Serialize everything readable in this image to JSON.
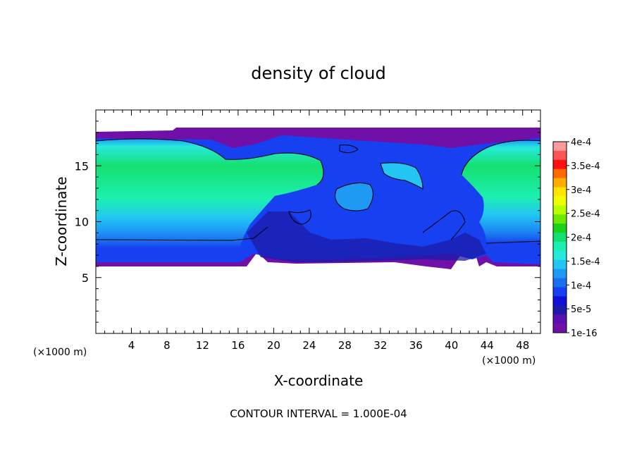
{
  "chart_data": {
    "type": "heatmap",
    "title": "density of cloud",
    "xlabel": "X-coordinate",
    "ylabel": "Z-coordinate",
    "x_unit_left": "(×1000 m)",
    "x_unit_right": "(×1000 m)",
    "footer": "CONTOUR INTERVAL = 1.000E-04",
    "xlim": [
      0,
      50
    ],
    "ylim": [
      0,
      20
    ],
    "x_ticks": [
      4,
      8,
      12,
      16,
      20,
      24,
      28,
      32,
      36,
      40,
      44,
      48
    ],
    "y_ticks": [
      5,
      10,
      15
    ],
    "colorbar": {
      "labels": [
        "4e-4",
        "3.5e-4",
        "3e-4",
        "2.5e-4",
        "2e-4",
        "1.5e-4",
        "1e-4",
        "5e-5",
        "1e-16"
      ],
      "colors": [
        "#ff9b9b",
        "#ff5555",
        "#ff1010",
        "#ff6a00",
        "#ffad00",
        "#ffe500",
        "#f0ff00",
        "#b8ff00",
        "#6ee800",
        "#18d21c",
        "#14e070",
        "#1cf0b0",
        "#26e9dc",
        "#23c6f2",
        "#1e9af5",
        "#1a70ee",
        "#1640f0",
        "#1010d8",
        "#1c1aa8",
        "#5a10b0",
        "#7010a8"
      ]
    },
    "contour_levels": [
      0.0001
    ]
  }
}
